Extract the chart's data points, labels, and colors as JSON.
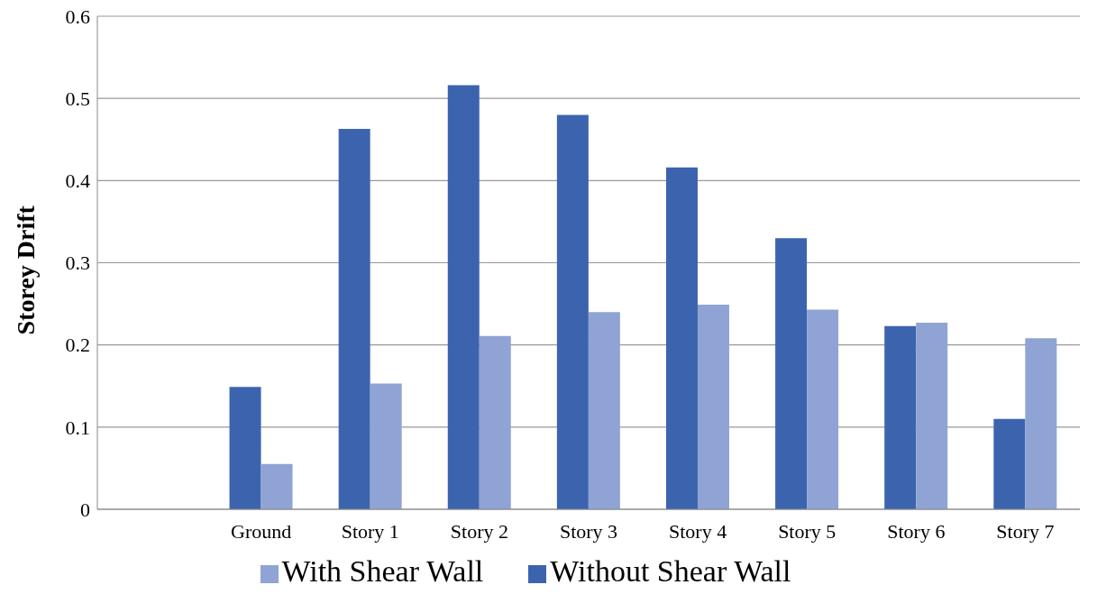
{
  "chart_data": {
    "type": "bar",
    "ylabel": "Storey Drift",
    "categories": [
      null,
      "Ground",
      "Story 1",
      "Story 2",
      "Story 3",
      "Story 4",
      "Story 5",
      "Story 6",
      "Story 7"
    ],
    "series": [
      {
        "name": "Without Shear Wall",
        "color": "#3c64ae",
        "values": [
          null,
          0.149,
          0.463,
          0.516,
          0.48,
          0.416,
          0.33,
          0.223,
          0.11
        ]
      },
      {
        "name": "With Shear Wall",
        "color": "#8fa4d4",
        "values": [
          null,
          0.055,
          0.153,
          0.211,
          0.24,
          0.249,
          0.243,
          0.227,
          0.208
        ]
      }
    ],
    "ylim": [
      0,
      0.6
    ],
    "yticks": [
      0,
      0.1,
      0.2,
      0.3,
      0.4,
      0.5,
      0.6
    ],
    "grid": "y",
    "legend": "bottom"
  }
}
